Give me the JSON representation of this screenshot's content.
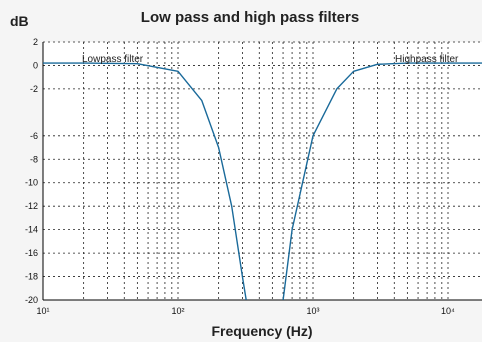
{
  "chart_data": {
    "type": "line",
    "title": "Low pass and high pass filters",
    "xlabel": "Frequency (Hz)",
    "ylabel": "dB",
    "x_scale": "log",
    "xlim": [
      10,
      20000
    ],
    "ylim": [
      -20,
      2
    ],
    "x_ticks": [
      "10¹",
      "10²",
      "10³",
      "10⁴"
    ],
    "x_tick_values": [
      10,
      100,
      1000,
      10000
    ],
    "y_ticks": [
      "2",
      "0",
      "-2",
      "-6",
      "-8",
      "-10",
      "-12",
      "-14",
      "-16",
      "-18",
      "-20"
    ],
    "grid": true,
    "annotations": [
      "Lowpass filter",
      "Highpass filter"
    ],
    "line_color": "#1a6a9a",
    "series": [
      {
        "x": [
          10,
          20,
          50,
          100,
          150,
          200,
          250,
          300,
          320
        ],
        "y": [
          0.2,
          0.2,
          0.15,
          -0.5,
          -3,
          -7,
          -12,
          -18,
          -20
        ]
      },
      {
        "x": [
          600,
          700,
          1000,
          1500,
          2000,
          3000,
          5000,
          10000,
          20000
        ],
        "y": [
          -20,
          -14,
          -6,
          -2,
          -0.5,
          0.1,
          0.2,
          0.2,
          0.2
        ]
      }
    ]
  }
}
